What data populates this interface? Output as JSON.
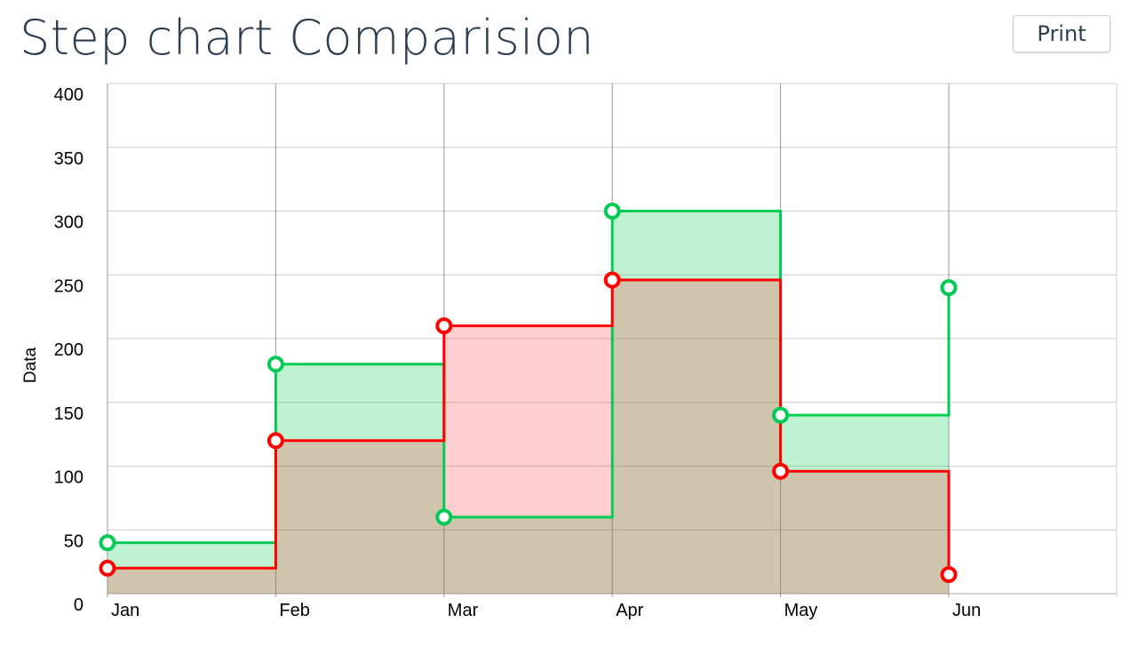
{
  "header": {
    "title": "Step chart Comparision",
    "print_label": "Print"
  },
  "chart_data": {
    "type": "line",
    "step": true,
    "categories": [
      "Jan",
      "Feb",
      "Mar",
      "Apr",
      "May",
      "Jun"
    ],
    "series": [
      {
        "values": [
          40,
          180,
          60,
          300,
          140,
          240
        ],
        "color": "#00cc55",
        "fill": "#00cc44"
      },
      {
        "values": [
          20,
          120,
          210,
          246,
          96,
          15
        ],
        "color": "#ff0000",
        "fill": "#ff4040"
      }
    ],
    "ylabel": "Data",
    "ylim": [
      0,
      400
    ],
    "yticks": [
      0,
      50,
      100,
      150,
      200,
      250,
      300,
      350,
      400
    ],
    "grid": true
  }
}
